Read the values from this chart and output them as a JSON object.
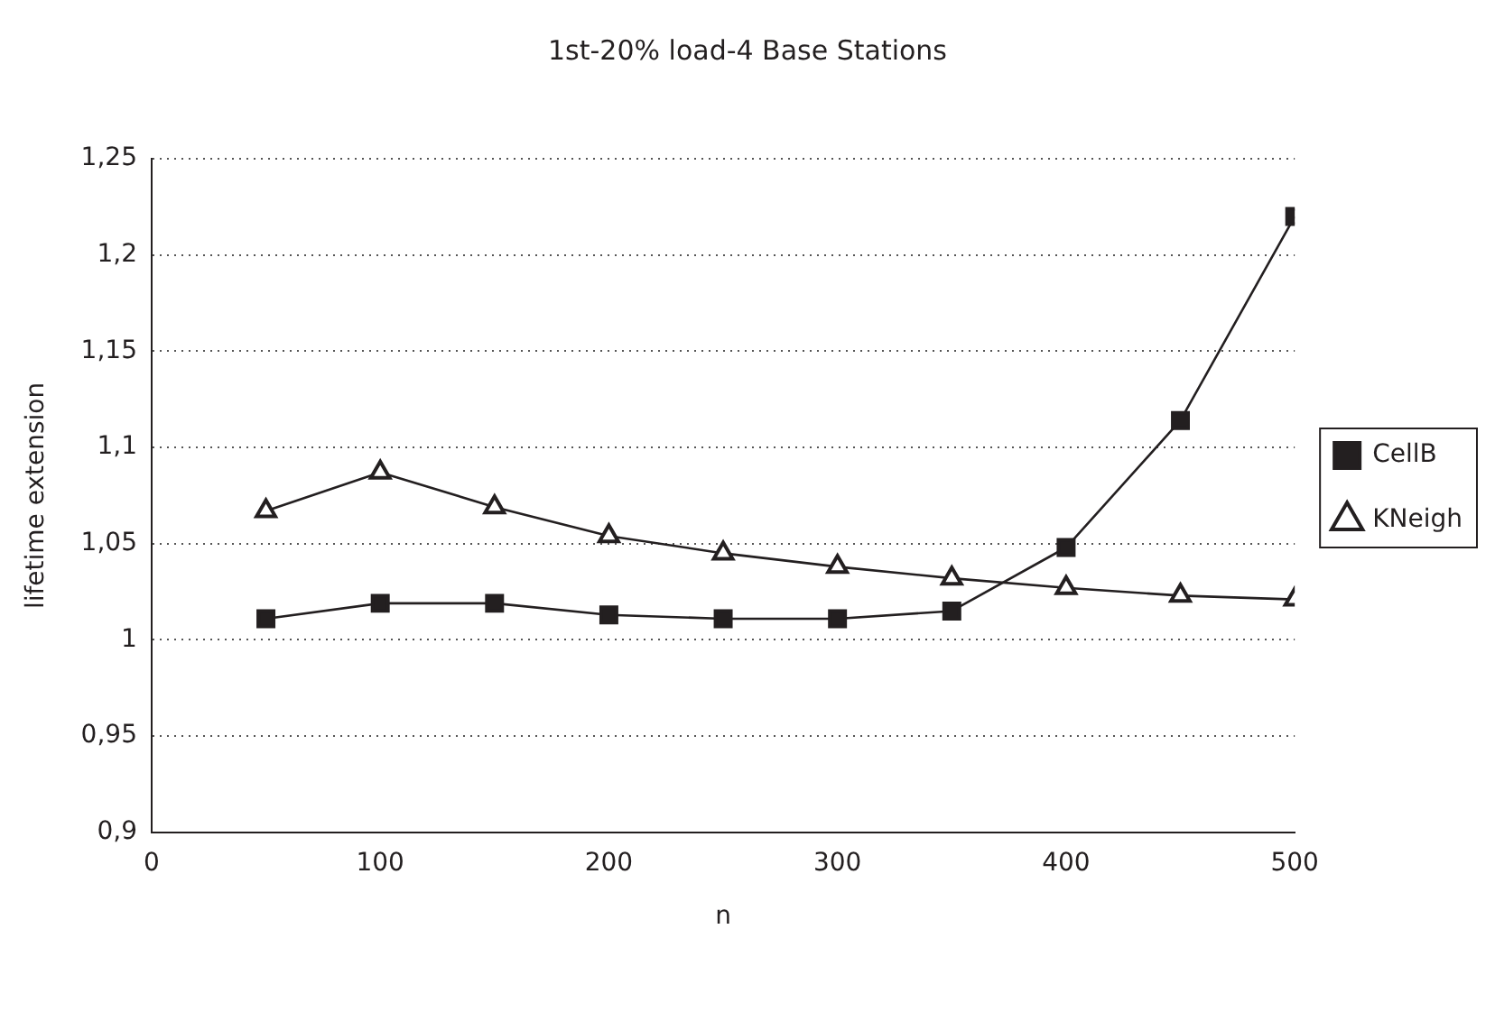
{
  "chart_data": {
    "type": "line",
    "title": "1st-20% load-4 Base Stations",
    "xlabel": "n",
    "ylabel": "lifetime extension",
    "x": [
      50,
      100,
      150,
      200,
      250,
      300,
      350,
      400,
      450,
      500
    ],
    "series": [
      {
        "name": "CellB",
        "color": "#231f20",
        "marker": "square",
        "values": [
          1.011,
          1.019,
          1.019,
          1.013,
          1.011,
          1.011,
          1.015,
          1.048,
          1.114,
          1.22
        ]
      },
      {
        "name": "KNeigh",
        "color": "#231f20",
        "marker": "triangle",
        "values": [
          1.067,
          1.087,
          1.069,
          1.054,
          1.045,
          1.038,
          1.032,
          1.027,
          1.023,
          1.021
        ]
      }
    ],
    "xlim": [
      0,
      500
    ],
    "xticks": [
      0,
      100,
      200,
      300,
      400,
      500
    ],
    "ylim": [
      0.9,
      1.25
    ],
    "yticks": [
      {
        "value": 0.9,
        "label": "0,9"
      },
      {
        "value": 0.95,
        "label": "0,95"
      },
      {
        "value": 1,
        "label": "1"
      },
      {
        "value": 1.05,
        "label": "1,05"
      },
      {
        "value": 1.1,
        "label": "1,1"
      },
      {
        "value": 1.15,
        "label": "1,15"
      },
      {
        "value": 1.2,
        "label": "1,2"
      },
      {
        "value": 1.25,
        "label": "1,25"
      }
    ],
    "grid": "y",
    "legend": "right",
    "line_style": "solid"
  }
}
